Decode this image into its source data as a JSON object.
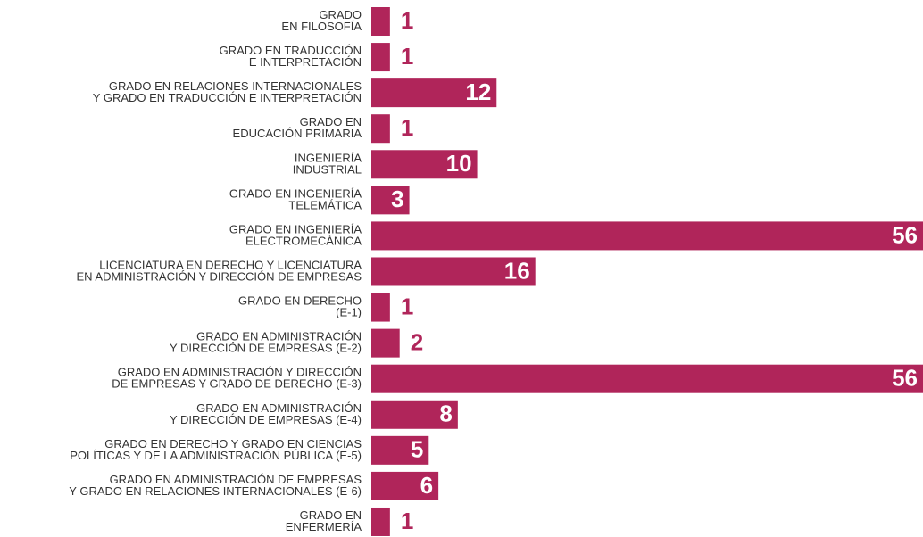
{
  "chart_data": {
    "type": "bar",
    "orientation": "horizontal",
    "color": "#b0255a",
    "categories": [
      [
        "GRADO",
        "EN FILOSOFÍA"
      ],
      [
        "GRADO EN TRADUCCIÓN",
        "E INTERPRETACIÓN"
      ],
      [
        "GRADO EN RELACIONES INTERNACIONALES",
        "Y GRADO EN TRADUCCIÓN E INTERPRETACIÓN"
      ],
      [
        "GRADO EN",
        "EDUCACIÓN PRIMARIA"
      ],
      [
        "INGENIERÍA",
        "INDUSTRIAL"
      ],
      [
        "GRADO EN INGENIERÍA",
        "TELEMÁTICA"
      ],
      [
        "GRADO EN INGENIERÍA",
        "ELECTROMECÁNICA"
      ],
      [
        "LICENCIATURA EN DERECHO Y LICENCIATURA",
        "EN ADMINISTRACIÓN Y DIRECCIÓN DE EMPRESAS"
      ],
      [
        "GRADO EN DERECHO",
        "(E-1)"
      ],
      [
        "GRADO EN ADMINISTRACIÓN",
        "Y DIRECCIÓN DE EMPRESAS (E-2)"
      ],
      [
        "GRADO EN ADMINISTRACIÓN Y DIRECCIÓN",
        "DE EMPRESAS Y GRADO DE DERECHO  (E-3)"
      ],
      [
        "GRADO EN ADMINISTRACIÓN",
        "Y DIRECCIÓN DE EMPRESAS  (E-4)"
      ],
      [
        "GRADO EN DERECHO Y GRADO EN CIENCIAS",
        "POLÍTICAS Y DE LA ADMINISTRACIÓN PÚBLICA (E-5)"
      ],
      [
        "GRADO EN ADMINISTRACIÓN DE EMPRESAS",
        "Y GRADO EN RELACIONES INTERNACIONALES (E-6)"
      ],
      [
        "GRADO EN",
        "ENFERMERÍA"
      ]
    ],
    "values": [
      1,
      1,
      12,
      1,
      10,
      3,
      56,
      16,
      1,
      2,
      56,
      8,
      5,
      6,
      1
    ]
  }
}
